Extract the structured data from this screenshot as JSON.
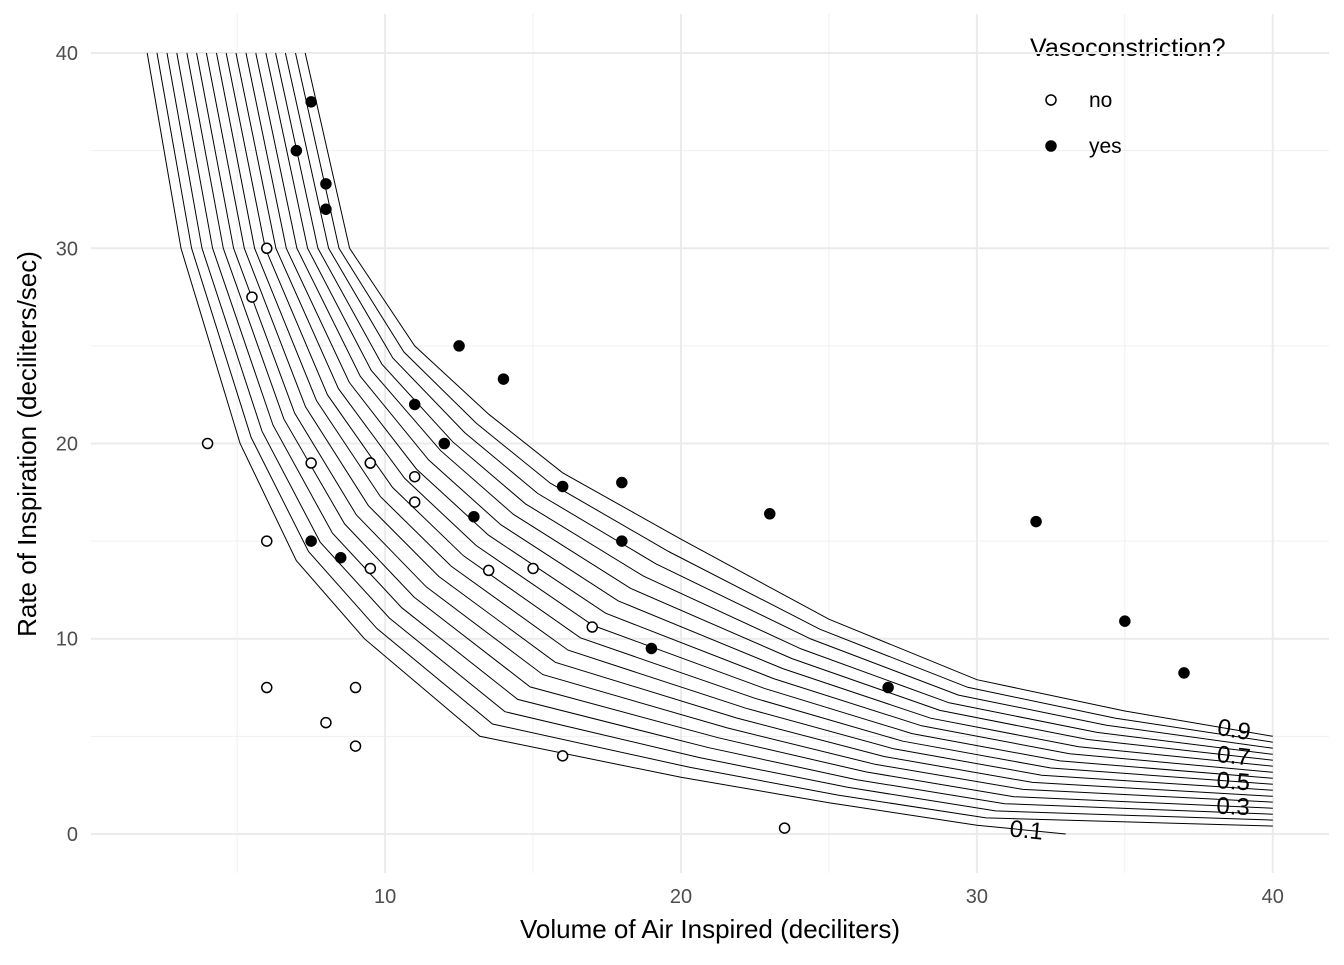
{
  "chart_data": {
    "type": "scatter",
    "x_label": "Volume of Air Inspired (deciliters)",
    "y_label": "Rate of Inspiration (deciliters/sec)",
    "legend_title": "Vasoconstriction?",
    "legend_position": "top-right",
    "grid": true,
    "xlim": [
      0.06,
      41.9
    ],
    "ylim": [
      -2,
      42
    ],
    "xticks": [
      10,
      20,
      30,
      40
    ],
    "yticks": [
      0,
      10,
      20,
      30,
      40
    ],
    "xminorticks": [
      5,
      15,
      25,
      35
    ],
    "yminorticks": [
      5,
      15,
      25,
      35
    ],
    "series": [
      {
        "name": "no",
        "color": "#000000",
        "filled": false,
        "x": [
          6,
          11,
          9,
          9,
          8,
          5.5,
          6,
          17,
          4,
          9.5,
          13.5,
          15,
          6,
          9.5,
          16,
          23.5,
          11,
          9.5,
          7.5
        ],
        "y": [
          7.5,
          17,
          7.5,
          4.5,
          5.7,
          27.5,
          30,
          10.6,
          20,
          13.6,
          13.5,
          13.6,
          15,
          19,
          4,
          0.3,
          18.3,
          19,
          19
        ]
      },
      {
        "name": "yes",
        "color": "#000000",
        "filled": true,
        "x": [
          37,
          35,
          12.5,
          7.5,
          8,
          7,
          14,
          7.5,
          23,
          32,
          8.5,
          18,
          16,
          18,
          19,
          27,
          11,
          12,
          8,
          13
        ],
        "y": [
          8.25,
          10.9,
          25,
          15,
          32,
          35,
          23.3,
          37.5,
          16.4,
          16,
          14.15,
          18,
          17.8,
          15,
          9.5,
          7.5,
          22,
          20,
          33.3,
          16.25
        ]
      }
    ],
    "contour_color": "#000000",
    "labeled_contours": [
      0,
      4,
      8,
      12,
      16
    ],
    "contours": [
      {
        "level": 0.1,
        "x": [
          1.96,
          3.1,
          5.1,
          7,
          9.3,
          13.2,
          20,
          25,
          30,
          33
        ],
        "y": [
          40,
          30,
          20,
          14,
          10,
          5,
          2.9,
          1.6,
          0.45,
          0
        ]
      },
      {
        "level": 0.15,
        "x": [
          2.29,
          3.46,
          5.47,
          7.41,
          9.72,
          13.63,
          20.31,
          25.31,
          30.31,
          40
        ],
        "y": [
          40,
          30,
          20.31,
          14.47,
          10.53,
          5.63,
          3.41,
          1.99,
          0.82,
          0.4
        ]
      },
      {
        "level": 0.2,
        "x": [
          2.63,
          3.81,
          5.84,
          7.81,
          10.14,
          14.05,
          20.63,
          25.63,
          30.63,
          40
        ],
        "y": [
          40,
          30,
          20.63,
          14.94,
          11.06,
          6.26,
          3.91,
          2.39,
          1.18,
          0.71
        ]
      },
      {
        "level": 0.25,
        "x": [
          2.96,
          4.17,
          6.21,
          8.22,
          10.56,
          14.48,
          20.94,
          25.94,
          30.94,
          40
        ],
        "y": [
          40,
          30,
          20.94,
          15.41,
          11.59,
          6.89,
          4.42,
          2.78,
          1.55,
          1.01
        ]
      },
      {
        "level": 0.3,
        "x": [
          3.3,
          4.53,
          6.58,
          8.63,
          10.98,
          14.9,
          21.25,
          26.25,
          31.25,
          40
        ],
        "y": [
          40,
          30,
          21.25,
          15.88,
          12.13,
          7.53,
          4.93,
          3.18,
          1.91,
          1.32
        ]
      },
      {
        "level": 0.35,
        "x": [
          3.63,
          4.88,
          6.94,
          9.03,
          11.39,
          15.33,
          21.56,
          26.56,
          31.56,
          40
        ],
        "y": [
          40,
          30,
          21.56,
          16.34,
          12.66,
          8.16,
          5.43,
          3.57,
          2.28,
          1.63
        ]
      },
      {
        "level": 0.4,
        "x": [
          3.96,
          5.24,
          7.31,
          9.44,
          11.81,
          15.75,
          21.88,
          26.88,
          31.88,
          40
        ],
        "y": [
          40,
          30,
          21.88,
          16.81,
          13.19,
          8.79,
          5.94,
          3.96,
          2.64,
          1.93
        ]
      },
      {
        "level": 0.45,
        "x": [
          4.3,
          5.59,
          7.68,
          9.84,
          12.23,
          16.18,
          22.19,
          27.19,
          32.19,
          40
        ],
        "y": [
          40,
          30,
          22.19,
          17.28,
          13.72,
          9.42,
          6.44,
          4.36,
          3.01,
          2.24
        ]
      },
      {
        "level": 0.5,
        "x": [
          4.63,
          5.95,
          8.05,
          10.25,
          12.65,
          16.6,
          22.5,
          27.5,
          32.5,
          40
        ],
        "y": [
          40,
          30,
          22.5,
          17.75,
          14.25,
          10.05,
          6.95,
          4.75,
          3.38,
          2.55
        ]
      },
      {
        "level": 0.55,
        "x": [
          4.96,
          6.31,
          8.42,
          10.66,
          13.07,
          17.03,
          22.81,
          27.81,
          32.81,
          40
        ],
        "y": [
          40,
          30,
          22.81,
          18.22,
          14.78,
          10.68,
          7.46,
          5.14,
          3.74,
          2.85
        ]
      },
      {
        "level": 0.6,
        "x": [
          5.3,
          6.66,
          8.79,
          11.06,
          13.49,
          17.45,
          23.13,
          28.13,
          33.13,
          40
        ],
        "y": [
          40,
          30,
          23.13,
          18.69,
          15.31,
          11.31,
          7.96,
          5.54,
          4.11,
          3.16
        ]
      },
      {
        "level": 0.65,
        "x": [
          5.63,
          7.02,
          9.16,
          11.47,
          13.91,
          17.88,
          23.44,
          28.44,
          33.44,
          40
        ],
        "y": [
          40,
          30,
          23.44,
          19.16,
          15.84,
          11.94,
          8.47,
          5.93,
          4.47,
          3.47
        ]
      },
      {
        "level": 0.7,
        "x": [
          5.97,
          7.38,
          9.53,
          11.88,
          14.33,
          18.3,
          23.75,
          28.75,
          33.75,
          40
        ],
        "y": [
          40,
          30,
          23.75,
          19.63,
          16.38,
          12.58,
          8.98,
          6.33,
          4.84,
          3.78
        ]
      },
      {
        "level": 0.75,
        "x": [
          6.3,
          7.73,
          9.89,
          12.28,
          14.74,
          18.73,
          24.06,
          29.06,
          34.06,
          40
        ],
        "y": [
          40,
          30,
          24.06,
          20.09,
          16.91,
          13.21,
          9.48,
          6.72,
          5.2,
          4.08
        ]
      },
      {
        "level": 0.8,
        "x": [
          6.63,
          8.09,
          10.26,
          12.69,
          15.16,
          19.15,
          24.38,
          29.38,
          34.38,
          40
        ],
        "y": [
          40,
          30,
          24.38,
          20.56,
          17.44,
          13.84,
          9.99,
          7.11,
          5.57,
          4.39
        ]
      },
      {
        "level": 0.85,
        "x": [
          6.97,
          8.44,
          10.63,
          13.09,
          15.58,
          19.58,
          24.69,
          29.69,
          34.69,
          40
        ],
        "y": [
          40,
          30,
          24.69,
          21.03,
          17.97,
          14.47,
          10.49,
          7.51,
          5.93,
          4.7
        ]
      },
      {
        "level": 0.9,
        "x": [
          7.3,
          8.8,
          11,
          13.5,
          16,
          20,
          25,
          30,
          35,
          40
        ],
        "y": [
          40,
          30,
          25,
          21.5,
          18.5,
          15.1,
          11,
          7.9,
          6.3,
          5
        ]
      }
    ]
  }
}
